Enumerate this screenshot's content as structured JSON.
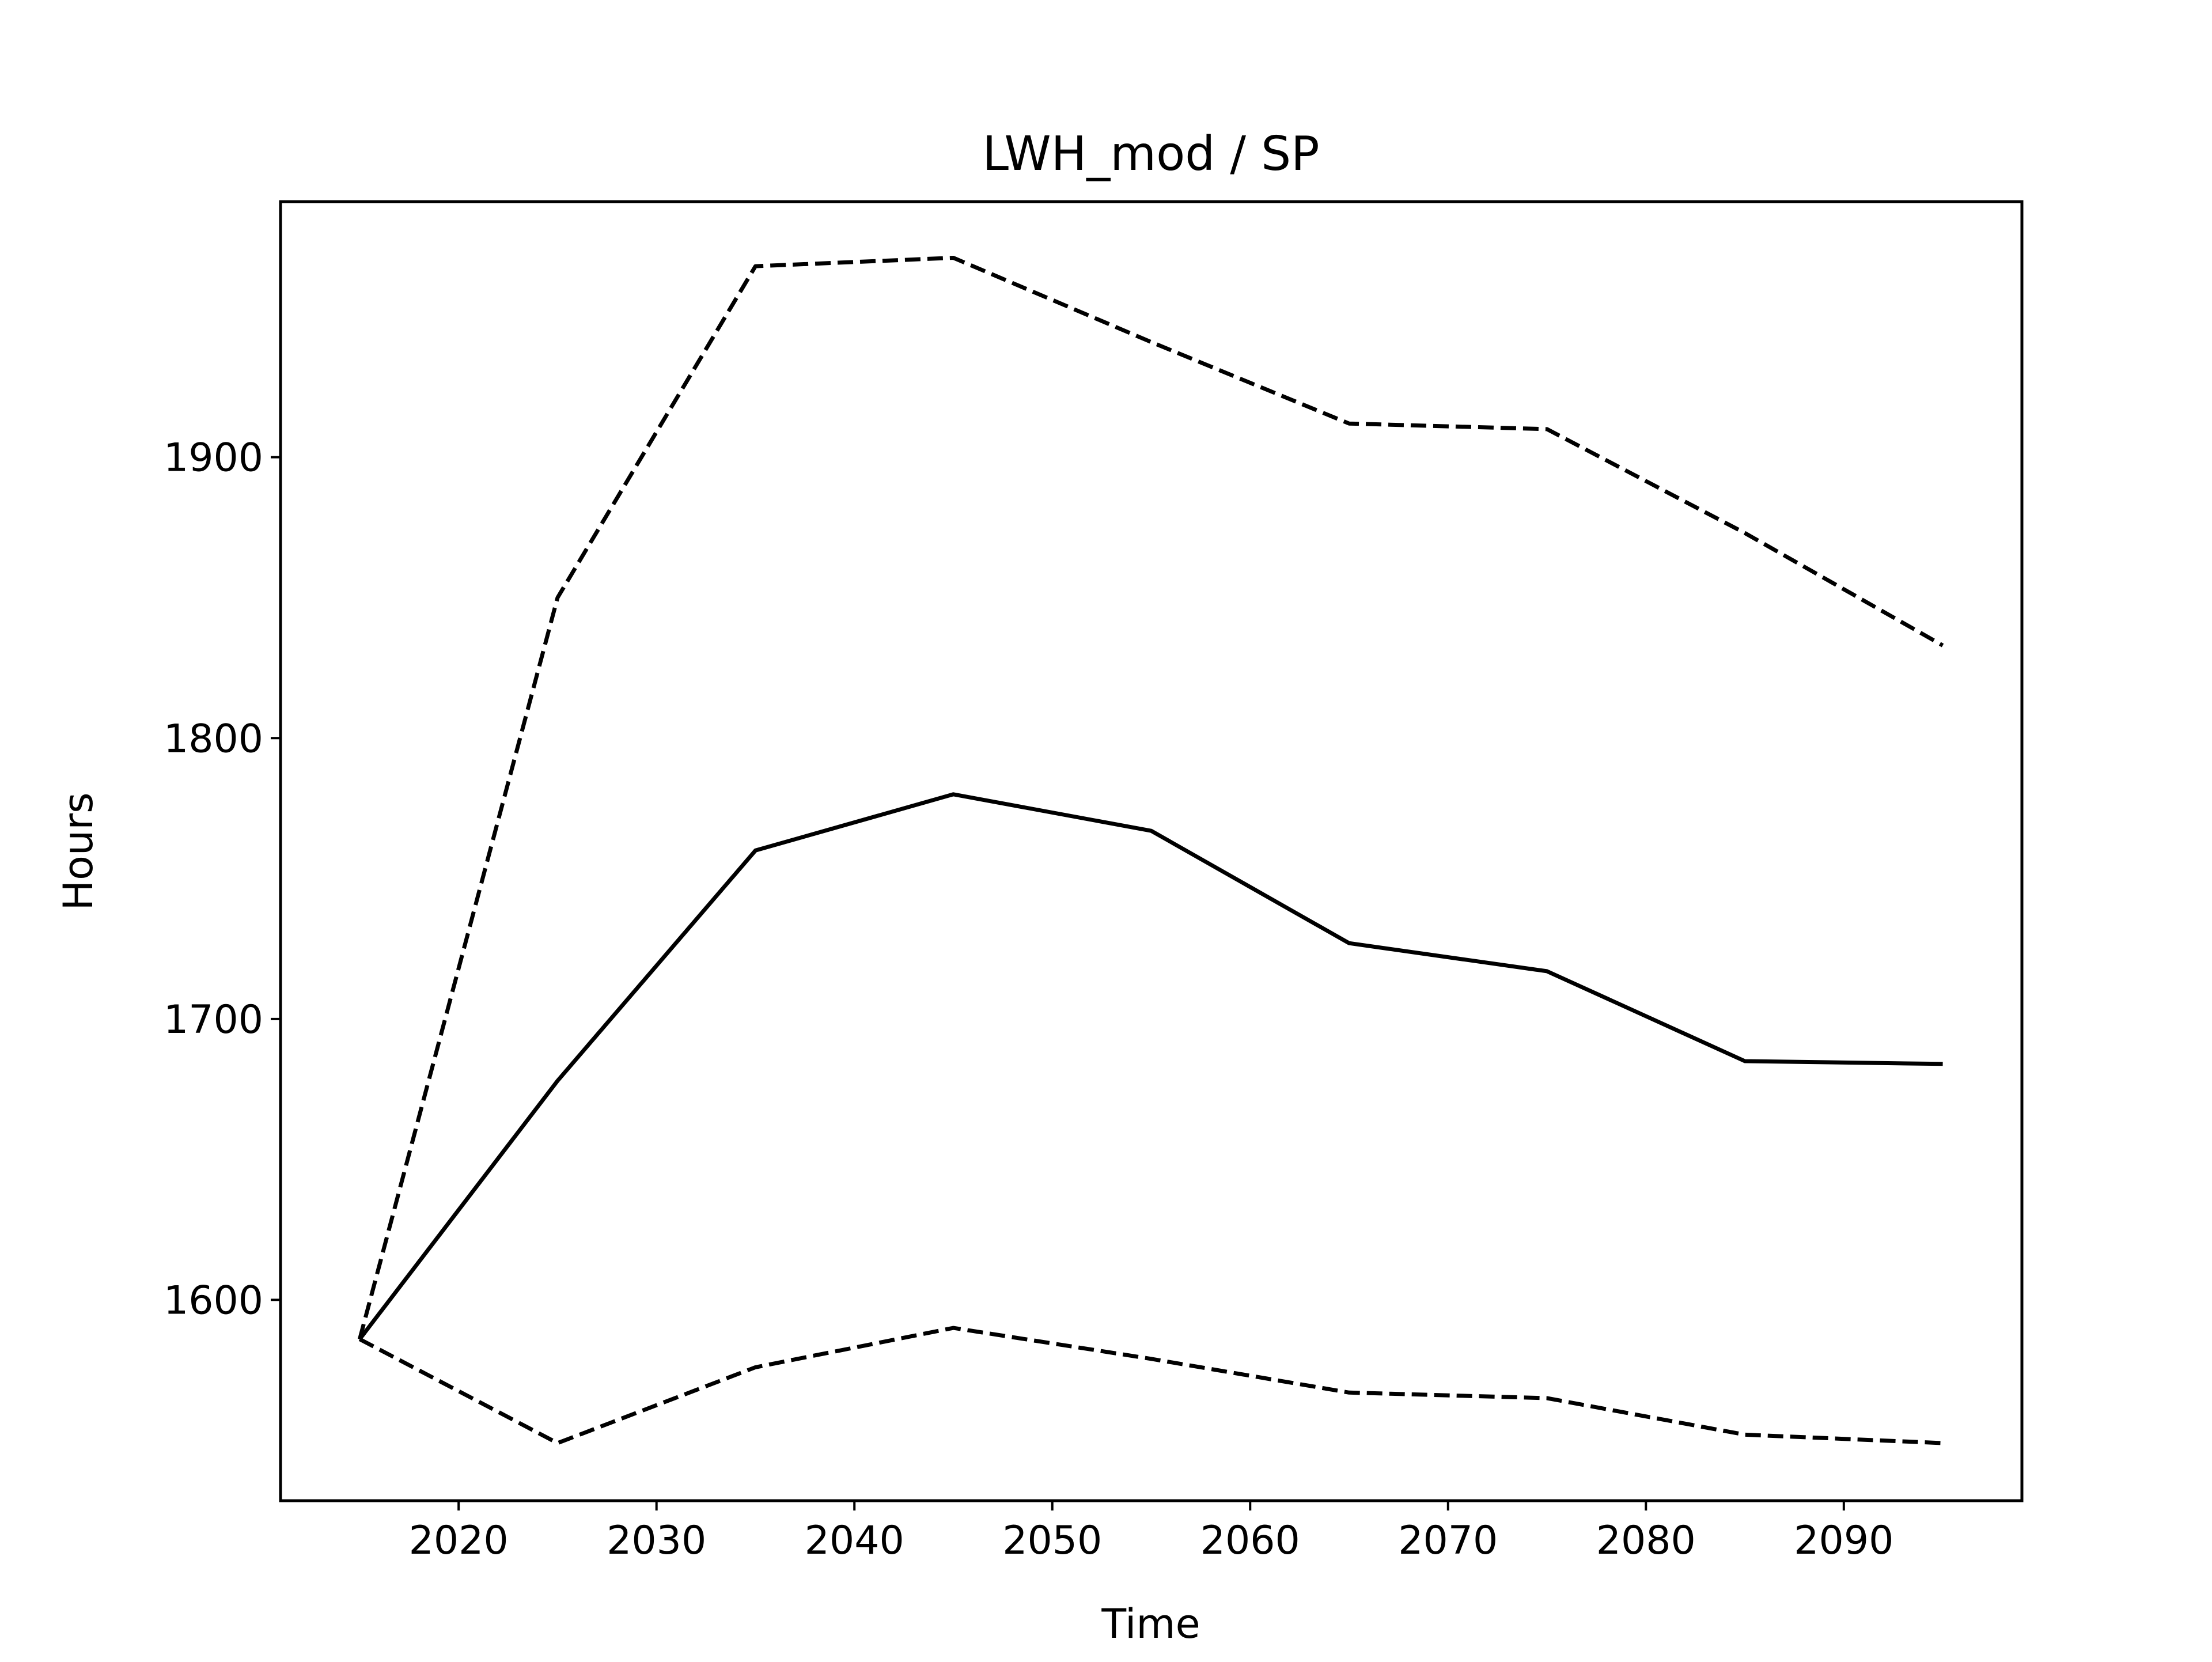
{
  "chart_data": {
    "type": "line",
    "title": "LWH_mod / SP",
    "xlabel": "Time",
    "ylabel": "Hours",
    "xlim": [
      2011,
      2099
    ],
    "ylim": [
      1528.5,
      1991
    ],
    "xticks": [
      2020,
      2030,
      2040,
      2050,
      2060,
      2070,
      2080,
      2090
    ],
    "yticks": [
      1600,
      1700,
      1800,
      1900
    ],
    "grid": false,
    "legend": "none",
    "x": [
      2015,
      2025,
      2035,
      2045,
      2055,
      2065,
      2075,
      2085,
      2095
    ],
    "series": [
      {
        "style": "dashed",
        "color": "#000000",
        "values": [
          1586,
          1850,
          1968,
          1971,
          1941,
          1912,
          1910,
          1873,
          1833
        ]
      },
      {
        "style": "solid",
        "color": "#000000",
        "values": [
          1586,
          1678,
          1760,
          1780,
          1767,
          1727,
          1717,
          1685,
          1684
        ]
      },
      {
        "style": "dashed",
        "color": "#000000",
        "values": [
          1586,
          1549,
          1576,
          1590,
          1579,
          1567,
          1565,
          1552,
          1549
        ]
      }
    ]
  }
}
